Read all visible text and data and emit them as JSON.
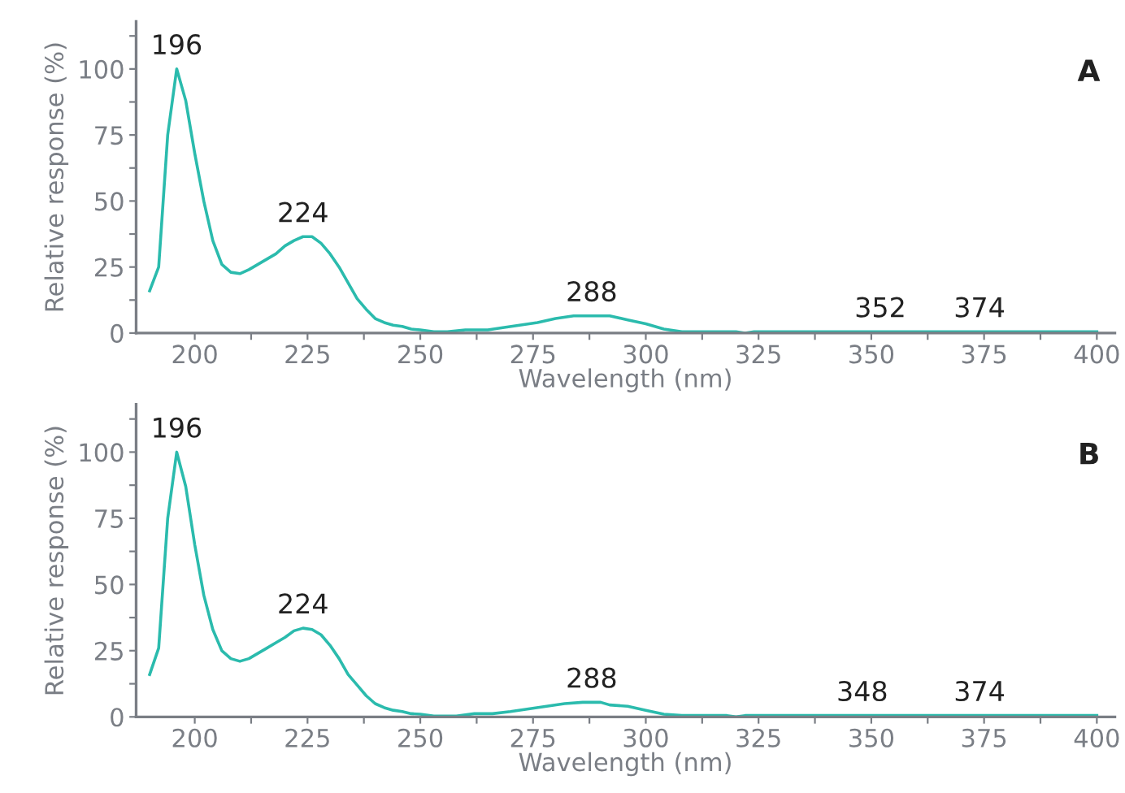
{
  "chart_data": [
    {
      "type": "line",
      "xlabel": "Wavelength (nm)",
      "ylabel": "Relative response (%)",
      "xlim": [
        187,
        404
      ],
      "ylim": [
        0,
        118
      ],
      "xticks": [
        200,
        {
          "value": 212.5,
          "label": null
        },
        225,
        {
          "value": 237.5,
          "label": null
        },
        250,
        {
          "value": 262.5,
          "label": null
        },
        275,
        {
          "value": 287.5,
          "label": null
        },
        300,
        {
          "value": 312.5,
          "label": null
        },
        325,
        {
          "value": 337.5,
          "label": null
        },
        350,
        {
          "value": 362.5,
          "label": null
        },
        375,
        {
          "value": 387.5,
          "label": null
        },
        400
      ],
      "yticks": [
        0,
        {
          "value": 12.5,
          "label": null
        },
        25,
        {
          "value": 37.5,
          "label": null
        },
        50,
        {
          "value": 62.5,
          "label": null
        },
        75,
        {
          "value": 87.5,
          "label": null
        },
        100,
        {
          "value": 112.5,
          "label": null
        }
      ],
      "grid": false,
      "marker": "none",
      "line_style": "solid",
      "series": [
        {
          "color": "#2bbbad",
          "x": [
            190,
            192,
            194,
            196,
            198,
            200,
            202,
            204,
            206,
            208,
            210,
            212,
            214,
            216,
            218,
            220,
            222,
            224,
            226,
            228,
            230,
            232,
            234,
            236,
            238,
            240,
            242,
            244,
            246,
            248,
            250,
            253,
            256,
            260,
            265,
            268,
            272,
            276,
            280,
            284,
            288,
            292,
            296,
            300,
            304,
            308,
            312,
            320,
            322,
            324,
            350,
            400
          ],
          "values": [
            16,
            25,
            75,
            100,
            88,
            68,
            50,
            35,
            26,
            23,
            22.5,
            24,
            26,
            28,
            30,
            33,
            35,
            36.5,
            36.5,
            34,
            30,
            25,
            19,
            13,
            9,
            5.5,
            4,
            3,
            2.5,
            1.5,
            1.2,
            0.5,
            0.5,
            1.2,
            1.2,
            2,
            3,
            4,
            5.5,
            6.5,
            6.5,
            6.5,
            5,
            3.5,
            1.5,
            0.5,
            0.5,
            0.5,
            0,
            0.5,
            0.5,
            0.5
          ]
        }
      ],
      "annotations": [
        {
          "text": "196",
          "x": 196,
          "y": 100
        },
        {
          "text": "224",
          "x": 224,
          "y": 36.5
        },
        {
          "text": "288",
          "x": 288,
          "y": 6.5
        },
        {
          "text": "352",
          "x": 352,
          "y": 0.5
        },
        {
          "text": "374",
          "x": 374,
          "y": 0.5
        },
        "A"
      ]
    },
    {
      "type": "line",
      "xlabel": "Wavelength (nm)",
      "ylabel": "Relative response (%)",
      "xlim": [
        187,
        404
      ],
      "ylim": [
        0,
        118
      ],
      "xticks": [
        200,
        {
          "value": 212.5,
          "label": null
        },
        225,
        {
          "value": 237.5,
          "label": null
        },
        250,
        {
          "value": 262.5,
          "label": null
        },
        275,
        {
          "value": 287.5,
          "label": null
        },
        300,
        {
          "value": 312.5,
          "label": null
        },
        325,
        {
          "value": 337.5,
          "label": null
        },
        350,
        {
          "value": 362.5,
          "label": null
        },
        375,
        {
          "value": 387.5,
          "label": null
        },
        400
      ],
      "yticks": [
        0,
        {
          "value": 12.5,
          "label": null
        },
        25,
        {
          "value": 37.5,
          "label": null
        },
        50,
        {
          "value": 62.5,
          "label": null
        },
        75,
        {
          "value": 87.5,
          "label": null
        },
        100,
        {
          "value": 112.5,
          "label": null
        }
      ],
      "grid": false,
      "marker": "none",
      "line_style": "solid",
      "series": [
        {
          "color": "#2bbbad",
          "x": [
            190,
            192,
            194,
            196,
            198,
            200,
            202,
            204,
            206,
            208,
            210,
            212,
            214,
            216,
            218,
            220,
            222,
            224,
            226,
            228,
            230,
            232,
            234,
            236,
            238,
            240,
            242,
            244,
            246,
            248,
            250,
            253,
            258,
            262,
            266,
            270,
            274,
            278,
            282,
            286,
            290,
            292,
            296,
            300,
            304,
            308,
            318,
            320,
            322,
            400
          ],
          "values": [
            16,
            26,
            75,
            100,
            87,
            65,
            46,
            33,
            25,
            22,
            21,
            22,
            24,
            26,
            28,
            30,
            32.5,
            33.5,
            33,
            31,
            27,
            22,
            16,
            12,
            8,
            5,
            3.5,
            2.5,
            2,
            1.2,
            1,
            0.3,
            0.3,
            1.2,
            1.2,
            2,
            3,
            4,
            5,
            5.5,
            5.5,
            4.5,
            4,
            2.5,
            1,
            0.5,
            0.5,
            0,
            0.5,
            0.5
          ]
        }
      ],
      "annotations": [
        {
          "text": "196",
          "x": 196,
          "y": 100
        },
        {
          "text": "224",
          "x": 224,
          "y": 33.5
        },
        {
          "text": "288",
          "x": 288,
          "y": 5.5
        },
        {
          "text": "348",
          "x": 348,
          "y": 0.5
        },
        {
          "text": "374",
          "x": 374,
          "y": 0.5
        },
        "B"
      ]
    }
  ]
}
